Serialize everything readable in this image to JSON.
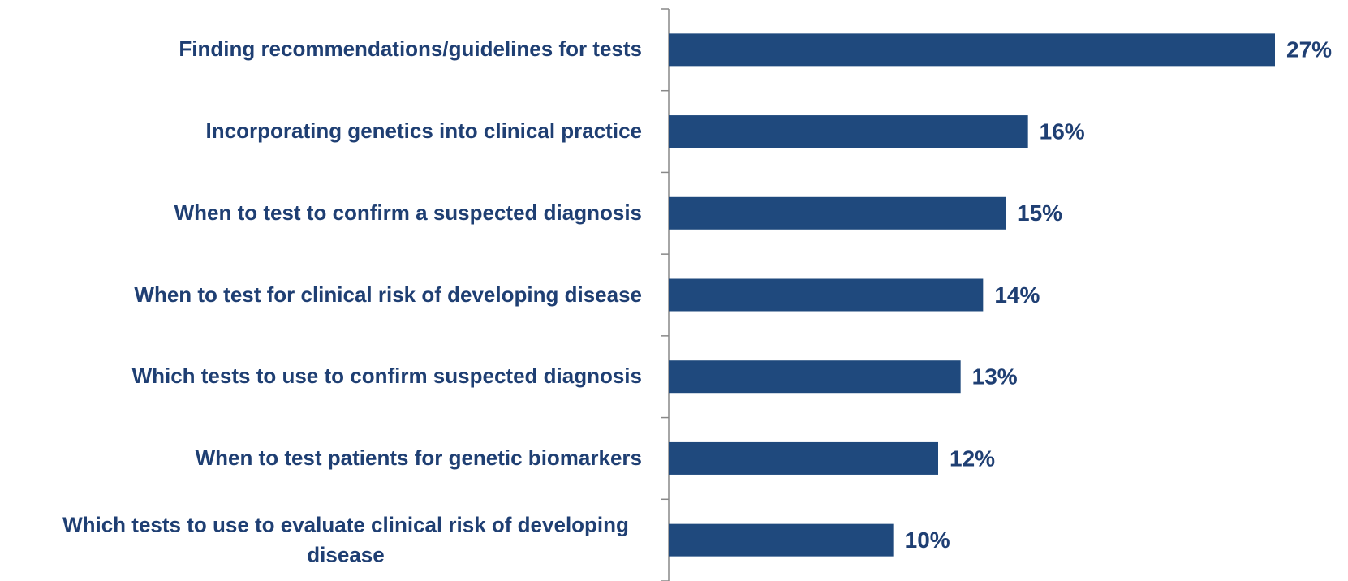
{
  "chart_data": {
    "type": "bar",
    "orientation": "horizontal",
    "categories": [
      "Finding recommendations/guidelines for tests",
      "Incorporating genetics into clinical practice",
      "When to test to confirm a suspected diagnosis",
      "When to test for clinical risk of developing disease",
      "Which tests to use to confirm suspected diagnosis",
      "When to test patients for genetic biomarkers",
      "Which tests to use to evaluate clinical risk of developing disease"
    ],
    "values": [
      27,
      16,
      15,
      14,
      13,
      12,
      10
    ],
    "value_labels": [
      "27%",
      "16%",
      "15%",
      "14%",
      "13%",
      "12%",
      "10%"
    ],
    "color": "#1f497d"
  }
}
